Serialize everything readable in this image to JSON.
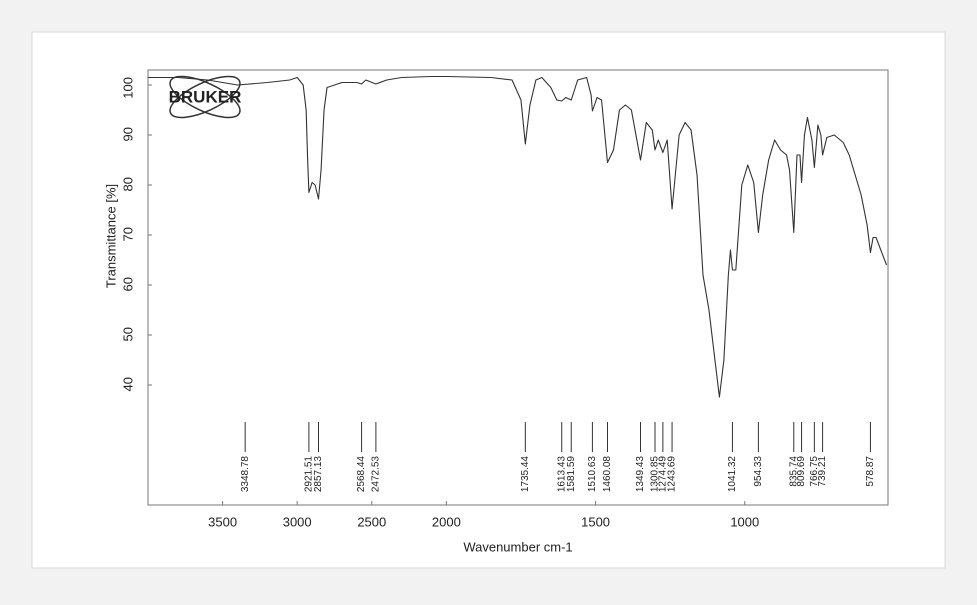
{
  "chart_data": {
    "type": "line",
    "logo": "BRUKER",
    "x_label": "Wavenumber cm-1",
    "y_label": "Transmittance [%]",
    "xlim": [
      4000,
      520
    ],
    "x_reversed": true,
    "x_scale_break": 2000,
    "xticks": [
      3500,
      3000,
      2500,
      2000,
      1500,
      1000
    ],
    "ylim": [
      16,
      103
    ],
    "yticks": [
      40,
      50,
      60,
      70,
      80,
      90,
      100
    ],
    "grid": false,
    "color": "#333333",
    "x": [
      4000,
      3800,
      3600,
      3400,
      3200,
      3050,
      3000,
      2960,
      2940,
      2930,
      2921.51,
      2900,
      2880,
      2857.13,
      2840,
      2820,
      2800,
      2700,
      2600,
      2568.44,
      2540,
      2472.53,
      2400,
      2300,
      2100,
      2000,
      1850,
      1780,
      1750,
      1735.44,
      1720,
      1700,
      1680,
      1650,
      1630,
      1613.43,
      1600,
      1581.59,
      1560,
      1530,
      1515,
      1510.63,
      1495,
      1480,
      1460.08,
      1440,
      1420,
      1400,
      1380,
      1349.43,
      1330,
      1310,
      1300.85,
      1290,
      1274.49,
      1260,
      1243.69,
      1220,
      1200,
      1180,
      1160,
      1140,
      1120,
      1100,
      1085,
      1070,
      1055,
      1048,
      1041.32,
      1030,
      1010,
      990,
      970,
      954.33,
      940,
      920,
      900,
      880,
      860,
      850,
      835.74,
      825,
      815,
      809.69,
      800,
      790,
      775,
      766.75,
      755,
      745,
      739.21,
      725,
      700,
      670,
      650,
      630,
      610,
      590,
      578.87,
      570,
      560,
      525
    ],
    "values": [
      101.5,
      101.5,
      101,
      100,
      100.5,
      101,
      101.5,
      100,
      95,
      85,
      78.5,
      80.5,
      80,
      77.2,
      83,
      95,
      99.5,
      100.5,
      100.5,
      100.2,
      101,
      100.2,
      101,
      101.5,
      101.7,
      101.7,
      101.5,
      101,
      97,
      88.2,
      96,
      101,
      101.5,
      99.5,
      97,
      96.8,
      97.5,
      97,
      101,
      101.5,
      98,
      94.8,
      97.5,
      97,
      84.5,
      87,
      95,
      96,
      95,
      85,
      92.5,
      91,
      87,
      89,
      86.5,
      89,
      75.2,
      90,
      92.5,
      91,
      82,
      62,
      55,
      45,
      37.6,
      45,
      62,
      67,
      63,
      63,
      80,
      84,
      80.5,
      70.5,
      78,
      85,
      89,
      87,
      86,
      83,
      70.5,
      86,
      86,
      80.5,
      90,
      93.5,
      89,
      83.5,
      92,
      90,
      86,
      89.5,
      90,
      88.5,
      86,
      82,
      78,
      72,
      66.5,
      69.5,
      69.5,
      64
    ],
    "peaks": [
      3348.78,
      2921.51,
      2857.13,
      2568.44,
      2472.53,
      1735.44,
      1613.43,
      1581.59,
      1510.63,
      1460.08,
      1349.43,
      1300.85,
      1274.49,
      1243.69,
      1041.32,
      954.33,
      835.74,
      809.69,
      766.75,
      739.21,
      578.87
    ]
  }
}
